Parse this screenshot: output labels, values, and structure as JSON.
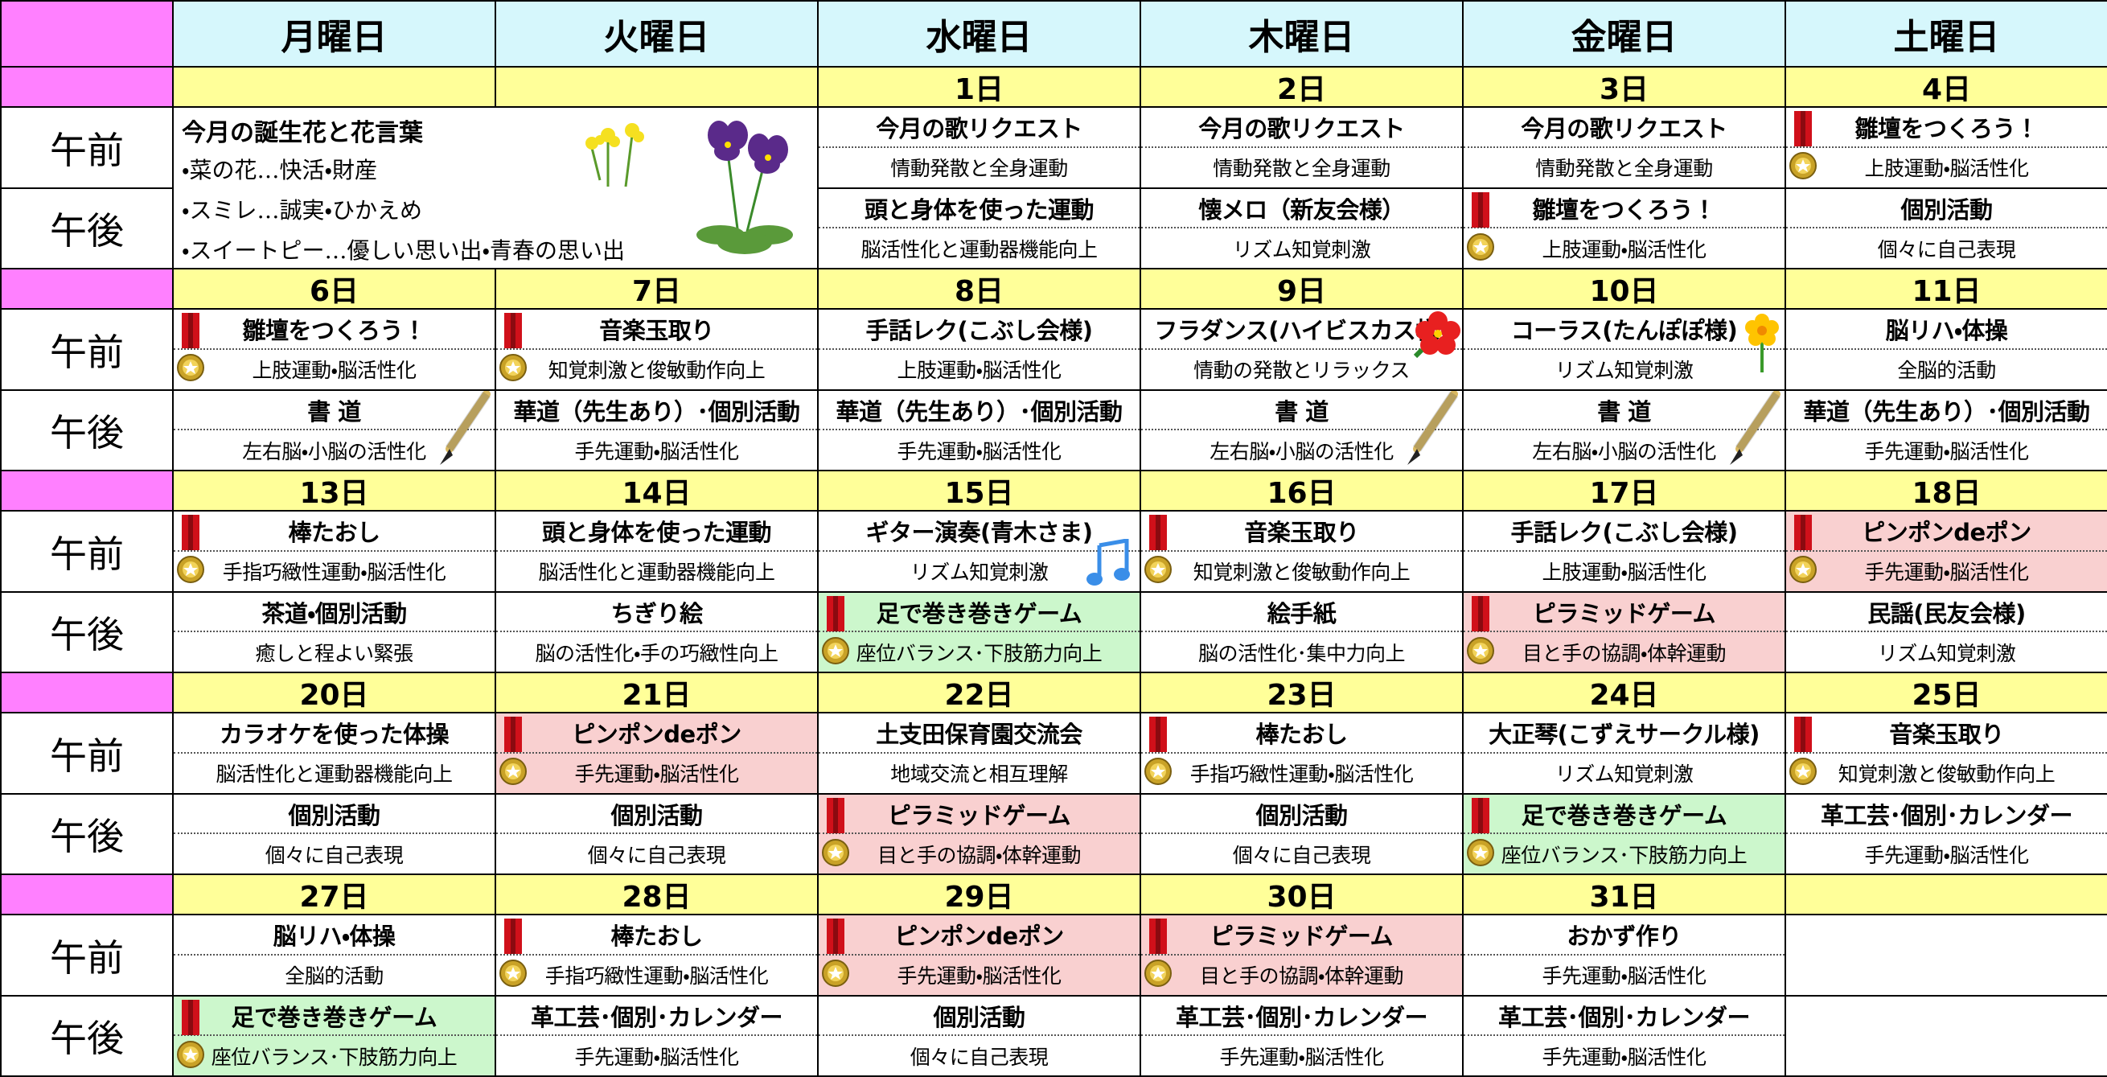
{
  "header": {
    "days": [
      "月曜日",
      "火曜日",
      "水曜日",
      "木曜日",
      "金曜日",
      "土曜日"
    ],
    "am": "午前",
    "pm": "午後"
  },
  "weeks": [
    {
      "dates": [
        null,
        null,
        "1日",
        "2日",
        "3日",
        "4日"
      ],
      "note": {
        "title": "今月の誕生花と花言葉",
        "lines": [
          "・菜の花…快活・財産",
          "・スミレ…誠実・ひかえめ",
          "・スイートピー…優しい思い出・青春の思い出"
        ]
      },
      "am": [
        null,
        null,
        {
          "title": "今月の歌リクエスト",
          "sub": "情動発散と全身運動"
        },
        {
          "title": "今月の歌リクエスト",
          "sub": "情動発散と全身運動"
        },
        {
          "title": "今月の歌リクエスト",
          "sub": "情動発散と全身運動"
        },
        {
          "title": "雛壇をつくろう！",
          "sub": "上肢運動・脳活性化",
          "icon": "medal"
        }
      ],
      "pm": [
        null,
        null,
        {
          "title": "頭と身体を使った運動",
          "sub": "脳活性化と運動器機能向上"
        },
        {
          "title": "懐メロ（新友会様）",
          "sub": "リズム知覚刺激"
        },
        {
          "title": "雛壇をつくろう！",
          "sub": "上肢運動・脳活性化",
          "icon": "medal"
        },
        {
          "title": "個別活動",
          "sub": "個々に自己表現"
        }
      ]
    },
    {
      "dates": [
        "6日",
        "7日",
        "8日",
        "9日",
        "10日",
        "11日"
      ],
      "am": [
        {
          "title": "雛壇をつくろう！",
          "sub": "上肢運動・脳活性化",
          "icon": "medal"
        },
        {
          "title": "音楽玉取り",
          "sub": "知覚刺激と俊敏動作向上",
          "icon": "medal"
        },
        {
          "title": "手話レク(こぶし会様)",
          "sub": "上肢運動・脳活性化"
        },
        {
          "title": "フラダンス(ハイビスカス様)",
          "sub": "情動の発散とリラックス",
          "icon": "hibiscus"
        },
        {
          "title": "コーラス(たんぽぽ様)",
          "sub": "リズム知覚刺激",
          "icon": "flower"
        },
        {
          "title": "脳リハ・体操",
          "sub": "全脳的活動"
        }
      ],
      "pm": [
        {
          "title": "書 道",
          "sub": "左右脳・小脳の活性化",
          "icon": "brush"
        },
        {
          "title": "華道（先生あり）･個別活動",
          "sub": "手先運動・脳活性化"
        },
        {
          "title": "華道（先生あり）･個別活動",
          "sub": "手先運動・脳活性化"
        },
        {
          "title": "書 道",
          "sub": "左右脳・小脳の活性化",
          "icon": "brush"
        },
        {
          "title": "書 道",
          "sub": "左右脳・小脳の活性化",
          "icon": "brush"
        },
        {
          "title": "華道（先生あり）･個別活動",
          "sub": "手先運動・脳活性化"
        }
      ]
    },
    {
      "dates": [
        "13日",
        "14日",
        "15日",
        "16日",
        "17日",
        "18日"
      ],
      "am": [
        {
          "title": "棒たおし",
          "sub": "手指巧緻性運動・脳活性化",
          "icon": "medal"
        },
        {
          "title": "頭と身体を使った運動",
          "sub": "脳活性化と運動器機能向上"
        },
        {
          "title": "ギター演奏(青木さま)",
          "sub": "リズム知覚刺激",
          "icon": "music"
        },
        {
          "title": "音楽玉取り",
          "sub": "知覚刺激と俊敏動作向上",
          "icon": "medal"
        },
        {
          "title": "手話レク(こぶし会様)",
          "sub": "上肢運動・脳活性化"
        },
        {
          "title": "ピンポンdeポン",
          "sub": "手先運動・脳活性化",
          "icon": "medal",
          "color": "#f9d0d0"
        }
      ],
      "pm": [
        {
          "title": "茶道・個別活動",
          "sub": "癒しと程よい緊張"
        },
        {
          "title": "ちぎり絵",
          "sub": "脳の活性化・手の巧緻性向上"
        },
        {
          "title": "足で巻き巻きゲーム",
          "sub": "座位バランス･下肢筋力向上",
          "icon": "medal",
          "color": "#ccf7cc"
        },
        {
          "title": "絵手紙",
          "sub": "脳の活性化･集中力向上"
        },
        {
          "title": "ピラミッドゲーム",
          "sub": "目と手の協調・体幹運動",
          "icon": "medal",
          "color": "#f9d0d0"
        },
        {
          "title": "民謡(民友会様)",
          "sub": "リズム知覚刺激"
        }
      ]
    },
    {
      "dates": [
        "20日",
        "21日",
        "22日",
        "23日",
        "24日",
        "25日"
      ],
      "am": [
        {
          "title": "カラオケを使った体操",
          "sub": "脳活性化と運動器機能向上"
        },
        {
          "title": "ピンポンdeポン",
          "sub": "手先運動・脳活性化",
          "icon": "medal",
          "color": "#f9d0d0"
        },
        {
          "title": "土支田保育園交流会",
          "sub": "地域交流と相互理解"
        },
        {
          "title": "棒たおし",
          "sub": "手指巧緻性運動・脳活性化",
          "icon": "medal"
        },
        {
          "title": "大正琴(こずえサークル様)",
          "sub": "リズム知覚刺激"
        },
        {
          "title": "音楽玉取り",
          "sub": "知覚刺激と俊敏動作向上",
          "icon": "medal"
        }
      ],
      "pm": [
        {
          "title": "個別活動",
          "sub": "個々に自己表現"
        },
        {
          "title": "個別活動",
          "sub": "個々に自己表現"
        },
        {
          "title": "ピラミッドゲーム",
          "sub": "目と手の協調・体幹運動",
          "icon": "medal",
          "color": "#f9d0d0"
        },
        {
          "title": "個別活動",
          "sub": "個々に自己表現"
        },
        {
          "title": "足で巻き巻きゲーム",
          "sub": "座位バランス･下肢筋力向上",
          "icon": "medal",
          "color": "#ccf7cc"
        },
        {
          "title": "革工芸･個別･カレンダー",
          "sub": "手先運動・脳活性化"
        }
      ]
    },
    {
      "dates": [
        "27日",
        "28日",
        "29日",
        "30日",
        "31日",
        null
      ],
      "am": [
        {
          "title": "脳リハ・体操",
          "sub": "全脳的活動"
        },
        {
          "title": "棒たおし",
          "sub": "手指巧緻性運動・脳活性化",
          "icon": "medal"
        },
        {
          "title": "ピンポンdeポン",
          "sub": "手先運動・脳活性化",
          "icon": "medal",
          "color": "#f9d0d0"
        },
        {
          "title": "ピラミッドゲーム",
          "sub": "目と手の協調・体幹運動",
          "icon": "medal",
          "color": "#f9d0d0"
        },
        {
          "title": "おかず作り",
          "sub": "手先運動・脳活性化"
        },
        null
      ],
      "pm": [
        {
          "title": "足で巻き巻きゲーム",
          "sub": "座位バランス･下肢筋力向上",
          "icon": "medal",
          "color": "#ccf7cc"
        },
        {
          "title": "革工芸･個別･カレンダー",
          "sub": "手先運動・脳活性化"
        },
        {
          "title": "個別活動",
          "sub": "個々に自己表現"
        },
        {
          "title": "革工芸･個別･カレンダー",
          "sub": "手先運動・脳活性化"
        },
        {
          "title": "革工芸･個別･カレンダー",
          "sub": "手先運動・脳活性化"
        },
        null
      ]
    }
  ]
}
